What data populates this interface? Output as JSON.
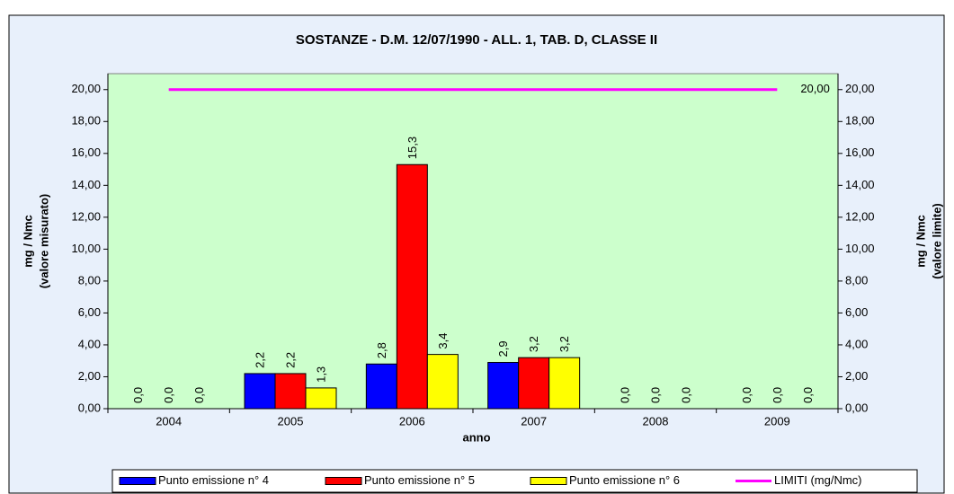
{
  "chart_data": {
    "type": "bar",
    "title": "SOSTANZE - D.M. 12/07/1990 - ALL. 1, TAB. D, CLASSE II",
    "xlabel": "anno",
    "ylabel": [
      "mg / Nmc",
      "(valore misurato)"
    ],
    "y2label": [
      "mg / Nmc",
      "(valore limite)"
    ],
    "categories": [
      "2004",
      "2005",
      "2006",
      "2007",
      "2008",
      "2009"
    ],
    "series": [
      {
        "name": "Punto emissione n° 4",
        "color": "#0000ff",
        "values": [
          0,
          2.2,
          2.8,
          2.9,
          0,
          0
        ],
        "value_labels": [
          "0,0",
          "2,2",
          "2,8",
          "2,9",
          "0,0",
          "0,0"
        ]
      },
      {
        "name": "Punto emissione n° 5",
        "color": "#ff0000",
        "values": [
          0,
          2.2,
          15.3,
          3.2,
          0,
          0
        ],
        "value_labels": [
          "0,0",
          "2,2",
          "15,3",
          "3,2",
          "0,0",
          "0,0"
        ]
      },
      {
        "name": "Punto emissione n° 6",
        "color": "#ffff00",
        "values": [
          0,
          1.3,
          3.4,
          3.2,
          0,
          0
        ],
        "value_labels": [
          "0,0",
          "1,3",
          "3,4",
          "3,2",
          "0,0",
          "0,0"
        ]
      },
      {
        "name": "LIMITI (mg/Nmc)",
        "color": "#ff00ff",
        "type": "line",
        "axis": "y2",
        "values": [
          20,
          20,
          20,
          20,
          20,
          20
        ],
        "value_labels": [
          null,
          null,
          null,
          null,
          null,
          "20,00"
        ]
      }
    ],
    "ylim": [
      0,
      21
    ],
    "yticks": [
      {
        "value": 0,
        "label": "0,00"
      },
      {
        "value": 2,
        "label": "2,00"
      },
      {
        "value": 4,
        "label": "4,00"
      },
      {
        "value": 6,
        "label": "6,00"
      },
      {
        "value": 8,
        "label": "8,00"
      },
      {
        "value": 10,
        "label": "10,00"
      },
      {
        "value": 12,
        "label": "12,00"
      },
      {
        "value": 14,
        "label": "14,00"
      },
      {
        "value": 16,
        "label": "16,00"
      },
      {
        "value": 18,
        "label": "18,00"
      },
      {
        "value": 20,
        "label": "20,00"
      }
    ],
    "y2lim": [
      0,
      21
    ],
    "y2ticks": [
      {
        "value": 0,
        "label": "0,00"
      },
      {
        "value": 2,
        "label": "2,00"
      },
      {
        "value": 4,
        "label": "4,00"
      },
      {
        "value": 6,
        "label": "6,00"
      },
      {
        "value": 8,
        "label": "8,00"
      },
      {
        "value": 10,
        "label": "10,00"
      },
      {
        "value": 12,
        "label": "12,00"
      },
      {
        "value": 14,
        "label": "14,00"
      },
      {
        "value": 16,
        "label": "16,00"
      },
      {
        "value": 18,
        "label": "18,00"
      },
      {
        "value": 20,
        "label": "20,00"
      }
    ],
    "plot_background": "#ccffcc",
    "legend": "bottom"
  }
}
